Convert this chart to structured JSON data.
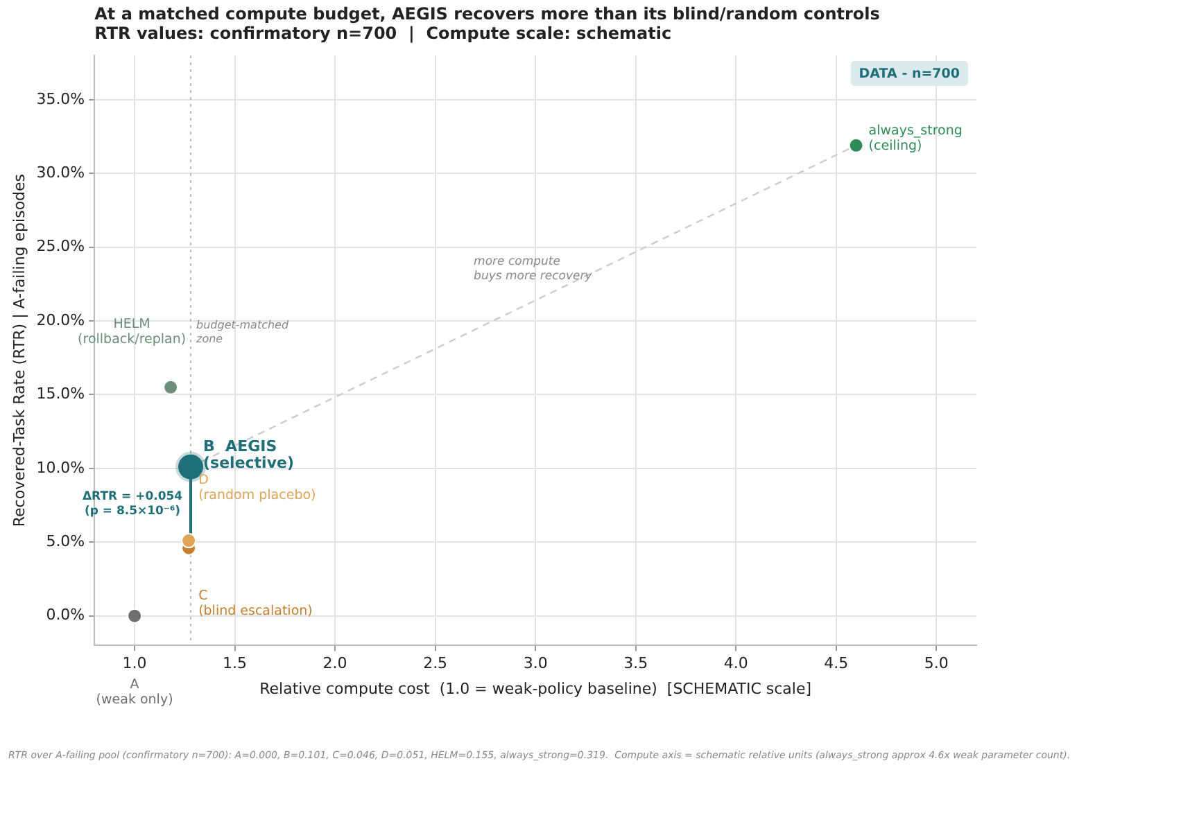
{
  "chart_data": {
    "type": "scatter",
    "title": "At a matched compute budget, AEGIS recovers more than its blind/random controls",
    "subtitle": "RTR values: confirmatory n=700  |  Compute scale: schematic",
    "xlabel": "Relative compute cost  (1.0 = weak-policy baseline)  [SCHEMATIC scale]",
    "ylabel": "Recovered-Task Rate (RTR) | A-failing episodes",
    "series": [
      {
        "name": "A\n(weak only)",
        "color": "#6e6e6e",
        "x": [
          1.0
        ],
        "values": [
          0.0
        ]
      },
      {
        "name": "HELM\n(rollback/replan)",
        "color": "#6b8f7a",
        "x": [
          1.18
        ],
        "values": [
          15.5
        ]
      },
      {
        "name": "B  AEGIS\n(selective)",
        "color": "#1f6f78",
        "x": [
          1.28
        ],
        "values": [
          10.1
        ]
      },
      {
        "name": "D\n(random placebo)",
        "color": "#e0a458",
        "x": [
          1.27
        ],
        "values": [
          5.1
        ]
      },
      {
        "name": "C\n(blind escalation)",
        "color": "#c77f2f",
        "x": [
          1.27
        ],
        "values": [
          4.6
        ]
      },
      {
        "name": "always_strong\n(ceiling)",
        "color": "#2e8b57",
        "x": [
          4.6
        ],
        "values": [
          31.9
        ]
      },
      {
        "type": "line",
        "color": "#cccccc",
        "line_style": "dashed",
        "marker": "none",
        "x": [
          1.28,
          4.6
        ],
        "values": [
          10.1,
          31.9
        ]
      },
      {
        "type": "line",
        "color": "#1f6f78",
        "line_style": "solid",
        "marker": "none",
        "x": [
          1.28,
          1.28
        ],
        "values": [
          10.1,
          5.5
        ]
      }
    ],
    "xlim": [
      0.8,
      5.2
    ],
    "xticks": [
      {
        "value": 1,
        "label": "1.0"
      },
      1.5,
      {
        "value": 2,
        "label": "2.0"
      },
      2.5,
      {
        "value": 3,
        "label": "3.0"
      },
      3.5,
      {
        "value": 4,
        "label": "4.0"
      },
      4.5,
      {
        "value": 5,
        "label": "5.0"
      }
    ],
    "ylim": [
      -2,
      38
    ],
    "yticks": [
      {
        "value": 0,
        "label": "0.0%"
      },
      {
        "value": 5,
        "label": "5.0%"
      },
      {
        "value": 10,
        "label": "10.0%"
      },
      {
        "value": 15,
        "label": "15.0%"
      },
      {
        "value": 20,
        "label": "20.0%"
      },
      {
        "value": 25,
        "label": "25.0%"
      },
      {
        "value": 30,
        "label": "30.0%"
      },
      {
        "value": 35,
        "label": "35.0%"
      }
    ],
    "ref_lines": [
      {
        "axis": "x",
        "value": 1.28,
        "label": "budget-matched\nzone",
        "color": "#bbbbbb",
        "line_style": "dotted"
      }
    ],
    "annotations": [
      {
        "text": "ΔRTR = +0.054\n(p = 8.5×10⁻⁶)",
        "x": 1.28,
        "y": 7.6
      },
      "more compute\nbuys more recovery",
      "DATA - n=700",
      "RTR over A-failing pool (confirmatory n=700): A=0.000, B=0.101, C=0.046, D=0.051, HELM=0.155, always_strong=0.319.  Compute axis = schematic relative units (always_strong approx 4.6x weak parameter count)."
    ],
    "grid": true,
    "legend": false,
    "marker": "circle"
  }
}
